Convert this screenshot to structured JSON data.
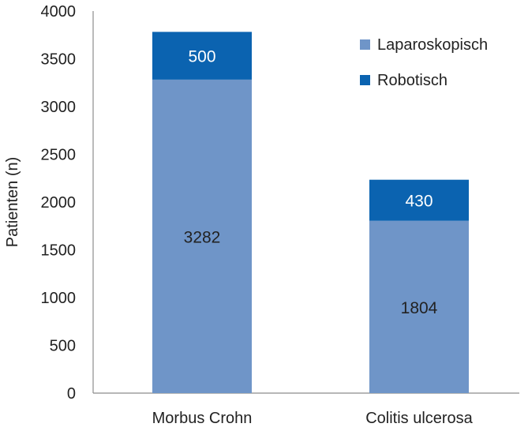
{
  "chart_data": {
    "type": "bar",
    "stacked": true,
    "categories": [
      "Morbus Crohn",
      "Colitis ulcerosa"
    ],
    "series": [
      {
        "name": "Laparoskopisch",
        "values": [
          3282,
          1804
        ],
        "color": "#6f95c8"
      },
      {
        "name": "Robotisch",
        "values": [
          500,
          430
        ],
        "color": "#0b63b0"
      }
    ],
    "ylabel": "Patienten (n)",
    "xlabel": "",
    "title": "",
    "ylim": [
      0,
      4000
    ],
    "yticks": [
      0,
      500,
      1000,
      1500,
      2000,
      2500,
      3000,
      3500,
      4000
    ],
    "grid": false,
    "legend_position": "top-right"
  }
}
